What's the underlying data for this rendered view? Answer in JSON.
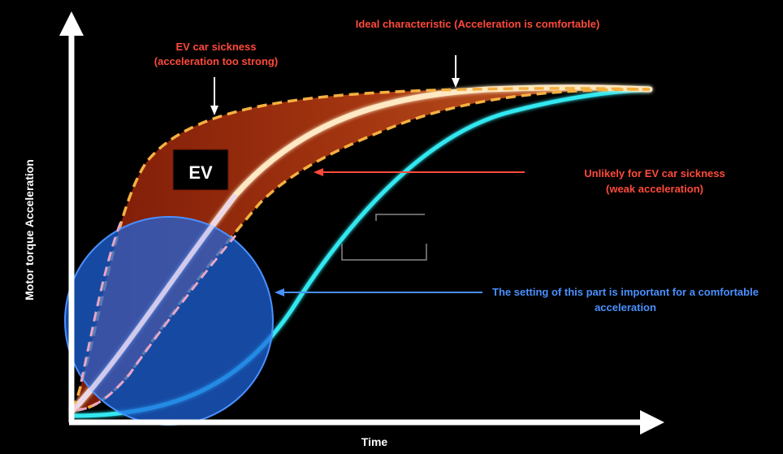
{
  "axes": {
    "y_label": "Motor torque Acceleration",
    "x_label": "Time"
  },
  "box_label": "EV",
  "annotations": {
    "ideal": "Ideal characteristic (Acceleration is comfortable)",
    "sickness_line1": "EV car sickness",
    "sickness_line2": "(acceleration too strong)",
    "weak_line1": "Unlikely for EV car sickness",
    "weak_line2": "(weak acceleration)",
    "setting_line1": "The setting of this part is important for a comfortable",
    "setting_line2": "acceleration"
  },
  "colors": {
    "background": "#000000",
    "axis": "#ffffff",
    "strong_curve": "#f5b041",
    "ideal_curve": "#ffe8c4",
    "weak_curve": "#33e8f0",
    "band_fill": "#b83a14",
    "circle": "#1f66e0",
    "red_text": "#ff4a3a",
    "blue_text": "#4a90ff"
  }
}
